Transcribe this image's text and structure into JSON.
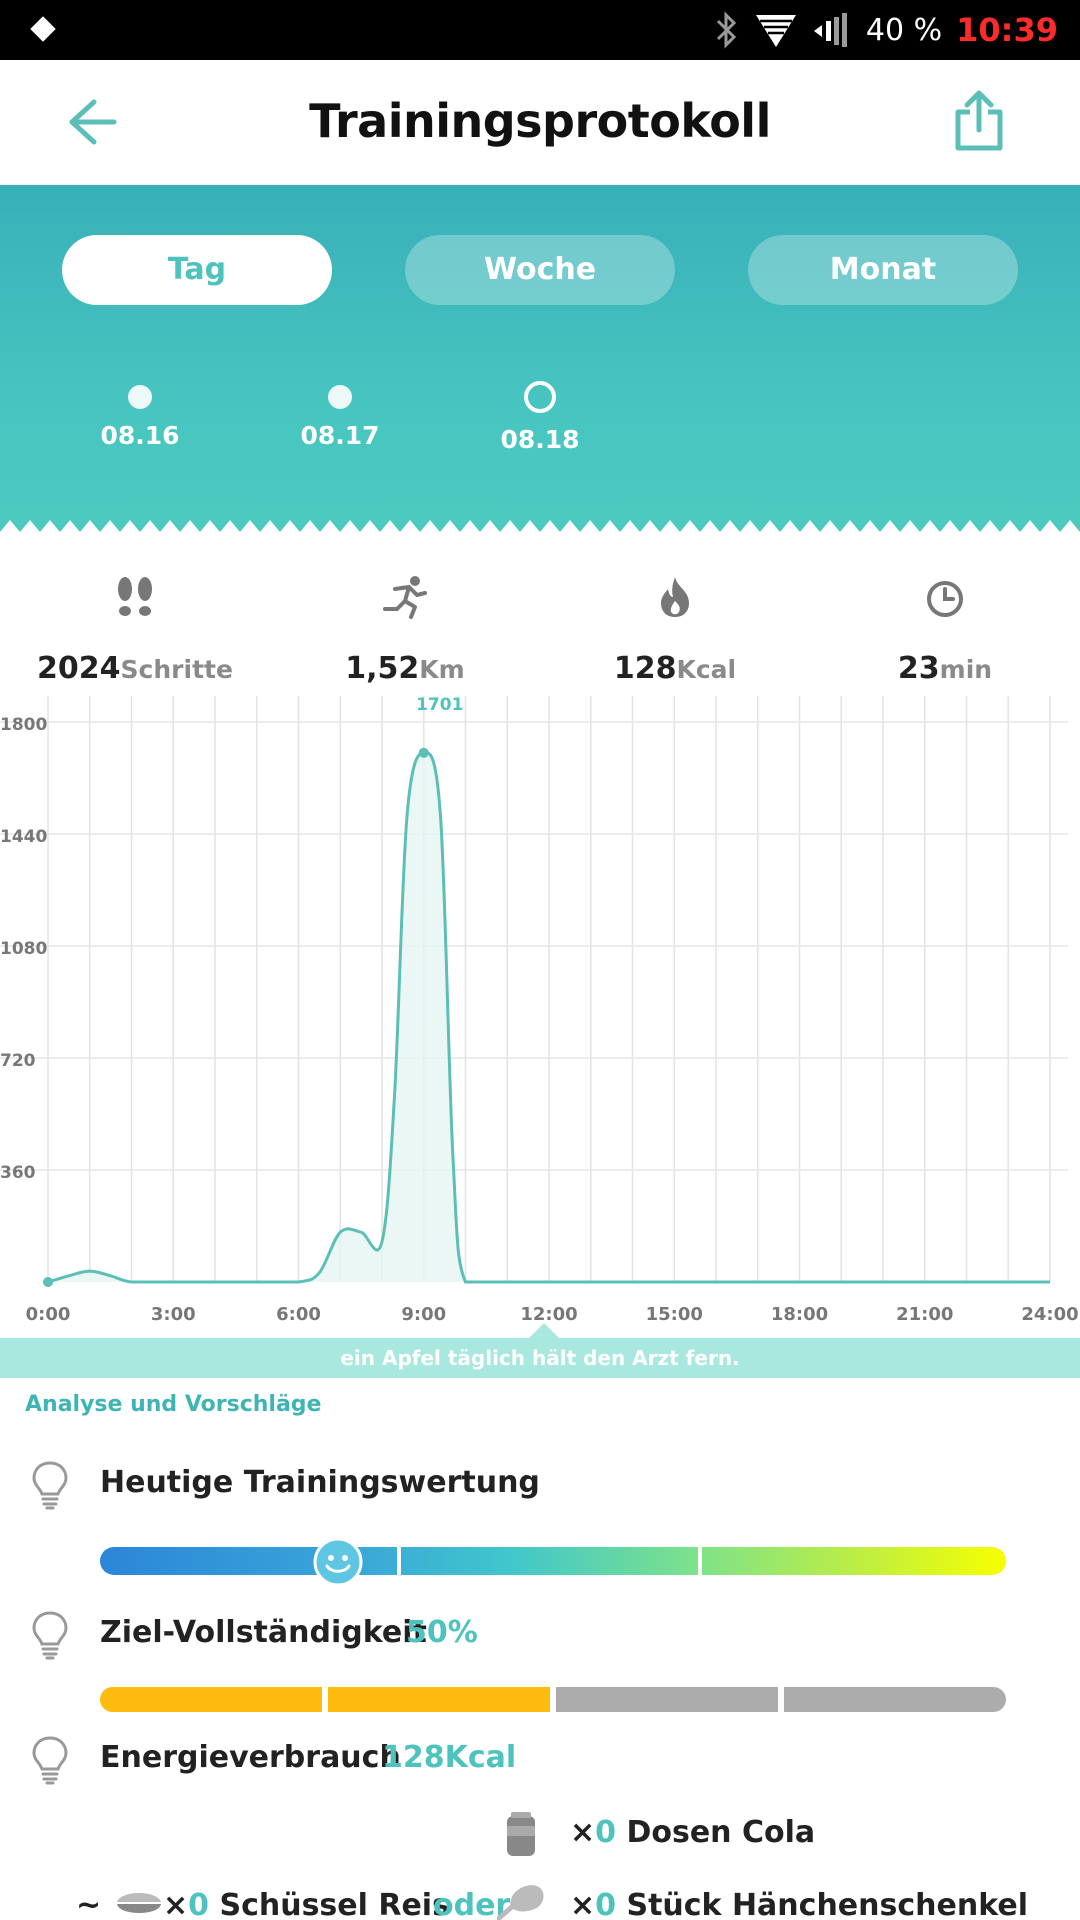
{
  "status_bar": {
    "battery": "40 %",
    "time": "10:39",
    "icons": [
      "bluetooth-icon",
      "wifi-icon",
      "signal-icon"
    ]
  },
  "header": {
    "title": "Trainingsprotokoll",
    "back_icon": "back-arrow-icon",
    "share_icon": "share-icon"
  },
  "tabs": [
    {
      "label": "Tag",
      "active": true
    },
    {
      "label": "Woche",
      "active": false
    },
    {
      "label": "Monat",
      "active": false
    }
  ],
  "dates": [
    {
      "label": "08.16",
      "selected": false
    },
    {
      "label": "08.17",
      "selected": false
    },
    {
      "label": "08.18",
      "selected": true
    }
  ],
  "stats": [
    {
      "value": "2024",
      "unit": "Schritte",
      "icon": "footprints-icon"
    },
    {
      "value": "1,52",
      "unit": "Km",
      "icon": "running-icon"
    },
    {
      "value": "128",
      "unit": "Kcal",
      "icon": "flame-icon"
    },
    {
      "value": "23",
      "unit": "min",
      "icon": "clock-icon"
    }
  ],
  "chart_data": {
    "type": "area",
    "peak_label": "1701",
    "y_ticks": [
      "360",
      "720",
      "1080",
      "1440",
      "1800"
    ],
    "x_ticks": [
      "0:00",
      "3:00",
      "6:00",
      "9:00",
      "12:00",
      "15:00",
      "18:00",
      "21:00",
      "24:00"
    ],
    "ylim": [
      0,
      1800
    ],
    "xlim": [
      0,
      24
    ],
    "grid": true,
    "x": [
      0,
      0.5,
      1,
      1.5,
      2,
      3,
      4,
      5,
      6,
      6.5,
      7,
      7.5,
      8,
      8.3,
      8.6,
      9,
      9.4,
      9.7,
      10,
      11,
      12,
      15,
      18,
      21,
      24
    ],
    "y": [
      0,
      20,
      35,
      20,
      0,
      0,
      0,
      0,
      0,
      30,
      160,
      160,
      130,
      600,
      1500,
      1701,
      1500,
      400,
      0,
      0,
      0,
      0,
      0,
      0,
      0
    ],
    "color": "#5bbfb5"
  },
  "banner": "ein Apfel täglich hält den Arzt fern.",
  "analysis": {
    "section_title": "Analyse und Vorschläge",
    "training_score_title": "Heutige Trainingswertung",
    "goal_title": "Ziel-Vollständigkeit",
    "goal_value": "50%",
    "goal_fraction": 0.5,
    "energy_title": "Energieverbrauch",
    "energy_value": "128Kcal",
    "food": {
      "cola_label": "Dosen Cola",
      "rice_label": "Schüssel Reis",
      "chicken_label": "Stück Hänchenschenkel",
      "times": "×",
      "cola_count": "0",
      "rice_count": "0",
      "chicken_count": "0",
      "or": "oder",
      "tilde": "~"
    }
  }
}
